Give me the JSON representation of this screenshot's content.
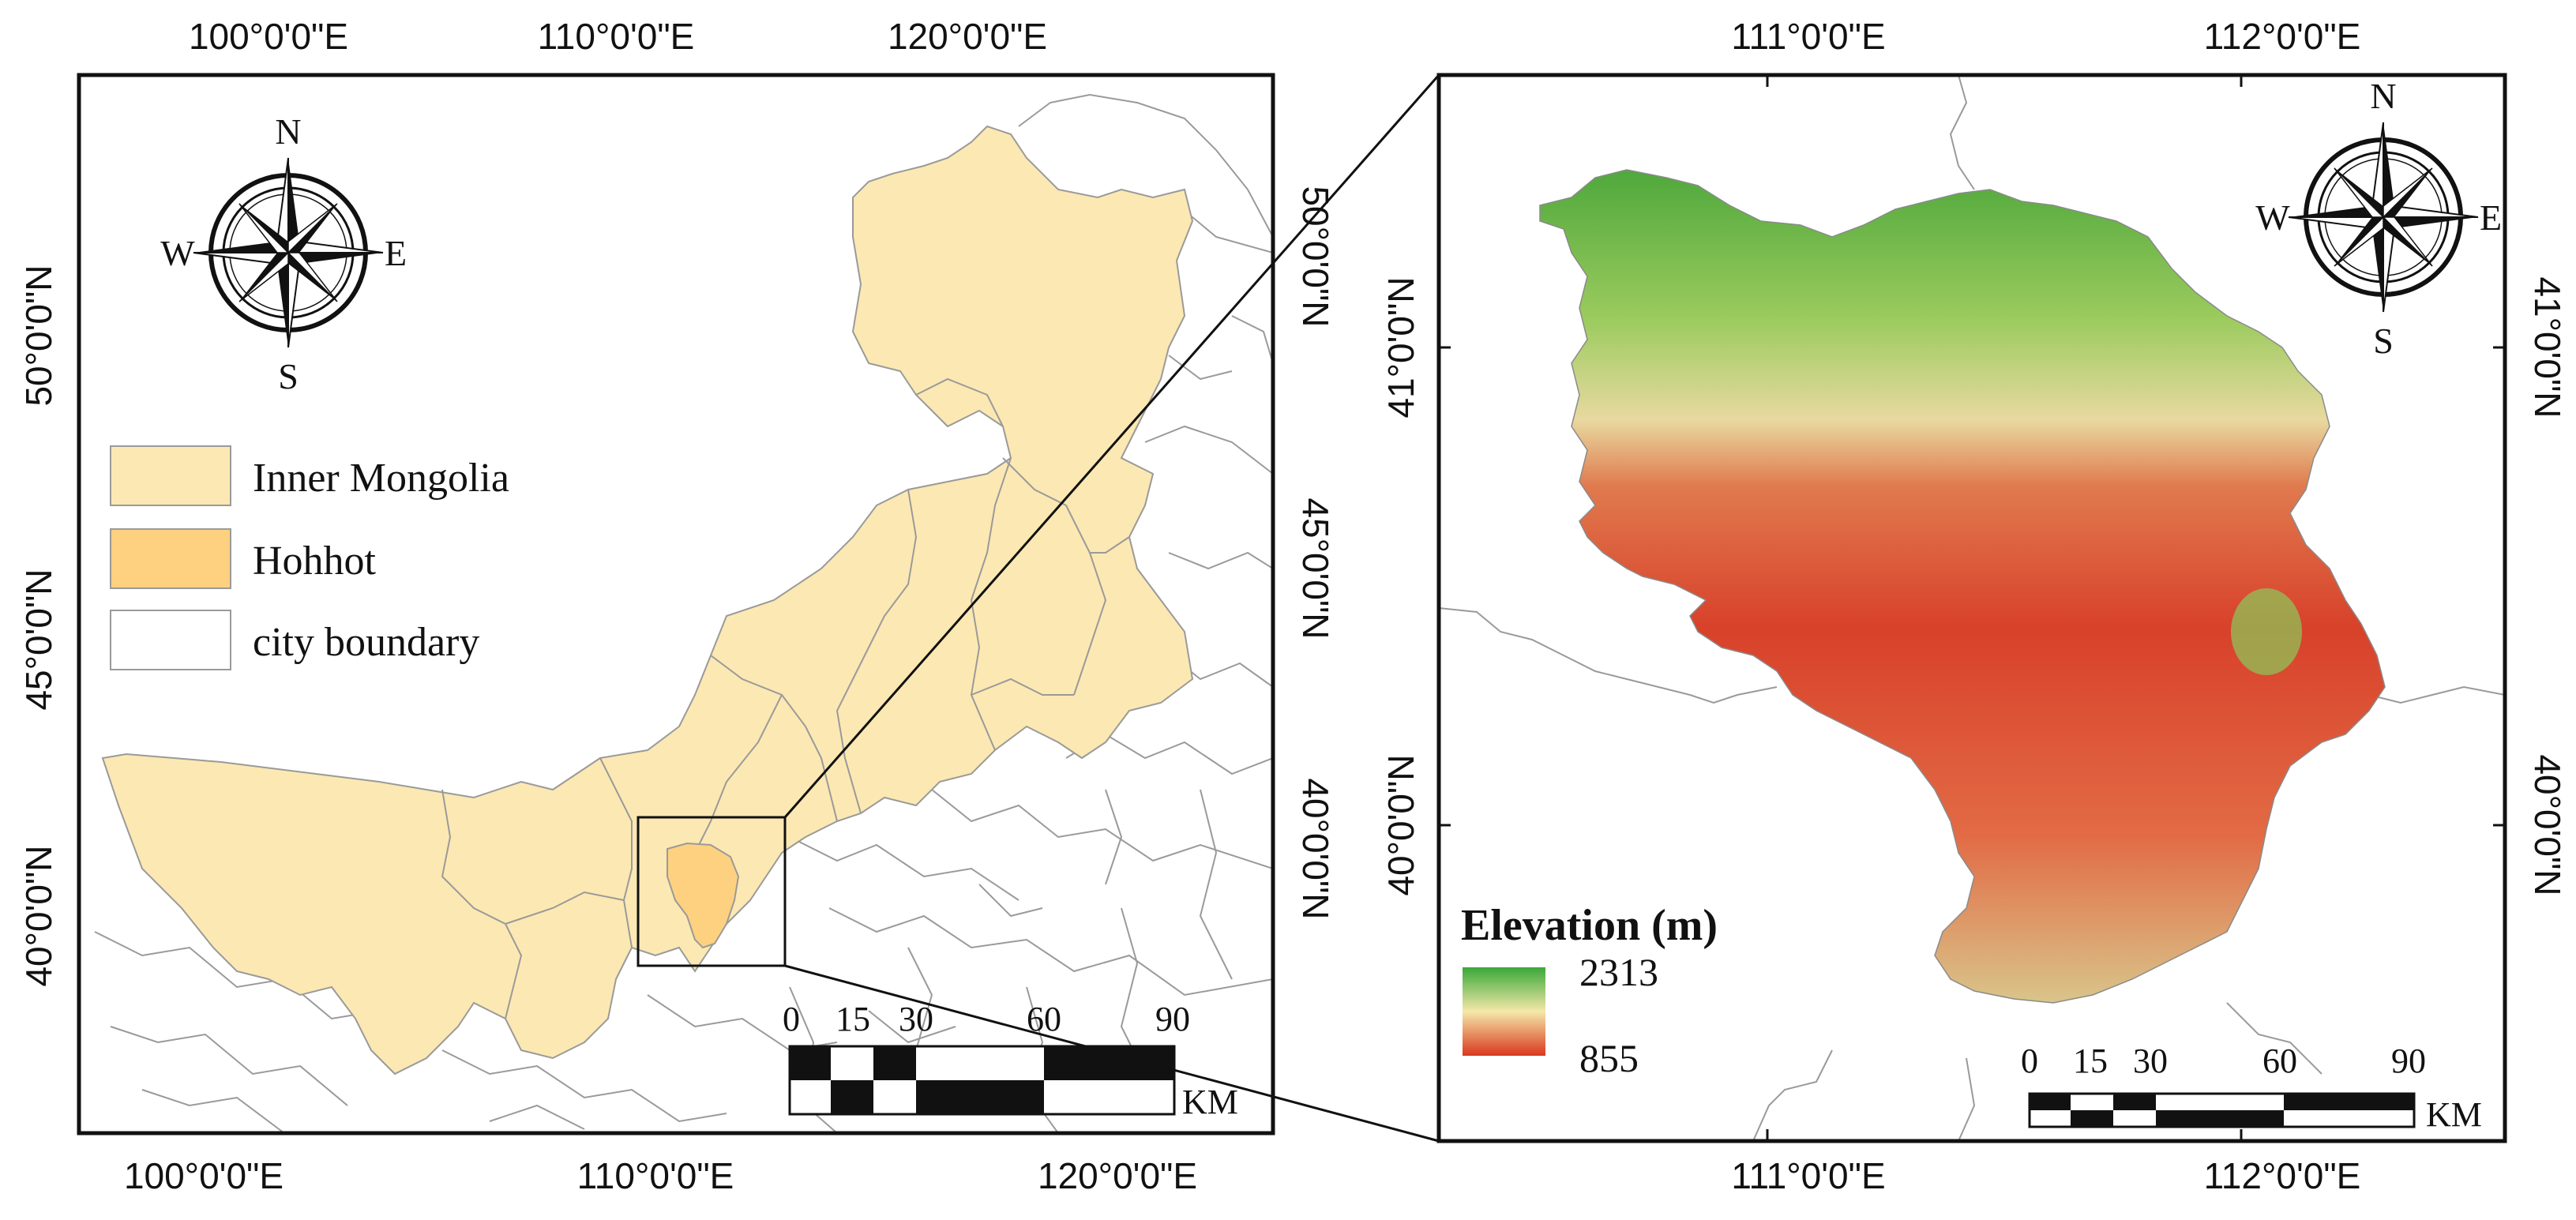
{
  "left_map": {
    "top_ticks": [
      "100°0'0\"E",
      "110°0'0\"E",
      "120°0'0\"E"
    ],
    "bottom_ticks": [
      "100°0'0\"E",
      "110°0'0\"E",
      "120°0'0\"E"
    ],
    "left_ticks": [
      "50°0'0\"N",
      "45°0'0\"N",
      "40°0'0\"N"
    ],
    "right_ticks": [
      "50°0'0\"N",
      "45°0'0\"N",
      "40°0'0\"N"
    ],
    "compass": {
      "n": "N",
      "s": "S",
      "e": "E",
      "w": "W"
    },
    "legend": {
      "items": [
        {
          "label": "Inner Mongolia",
          "color": "#FCE8B2"
        },
        {
          "label": "Hohhot",
          "color": "#FDD17F"
        },
        {
          "label": "city boundary",
          "color": "#FFFFFF"
        }
      ]
    },
    "scale": {
      "labels": [
        "0",
        "15",
        "30",
        "60",
        "90"
      ],
      "unit": "KM"
    }
  },
  "right_map": {
    "top_ticks": [
      "111°0'0\"E",
      "112°0'0\"E"
    ],
    "bottom_ticks": [
      "111°0'0\"E",
      "112°0'0\"E"
    ],
    "left_ticks": [
      "41°0'0\"N",
      "40°0'0\"N"
    ],
    "right_ticks": [
      "41°0'0\"N",
      "40°0'0\"N"
    ],
    "compass": {
      "n": "N",
      "s": "S",
      "e": "E",
      "w": "W"
    },
    "elevation": {
      "title": "Elevation (m)",
      "max": "2313",
      "min": "855",
      "color_high": "#3AA83A",
      "color_mid": "#F5E8A8",
      "color_low": "#D9381E"
    },
    "scale": {
      "labels": [
        "0",
        "15",
        "30",
        "60",
        "90"
      ],
      "unit": "KM"
    }
  }
}
